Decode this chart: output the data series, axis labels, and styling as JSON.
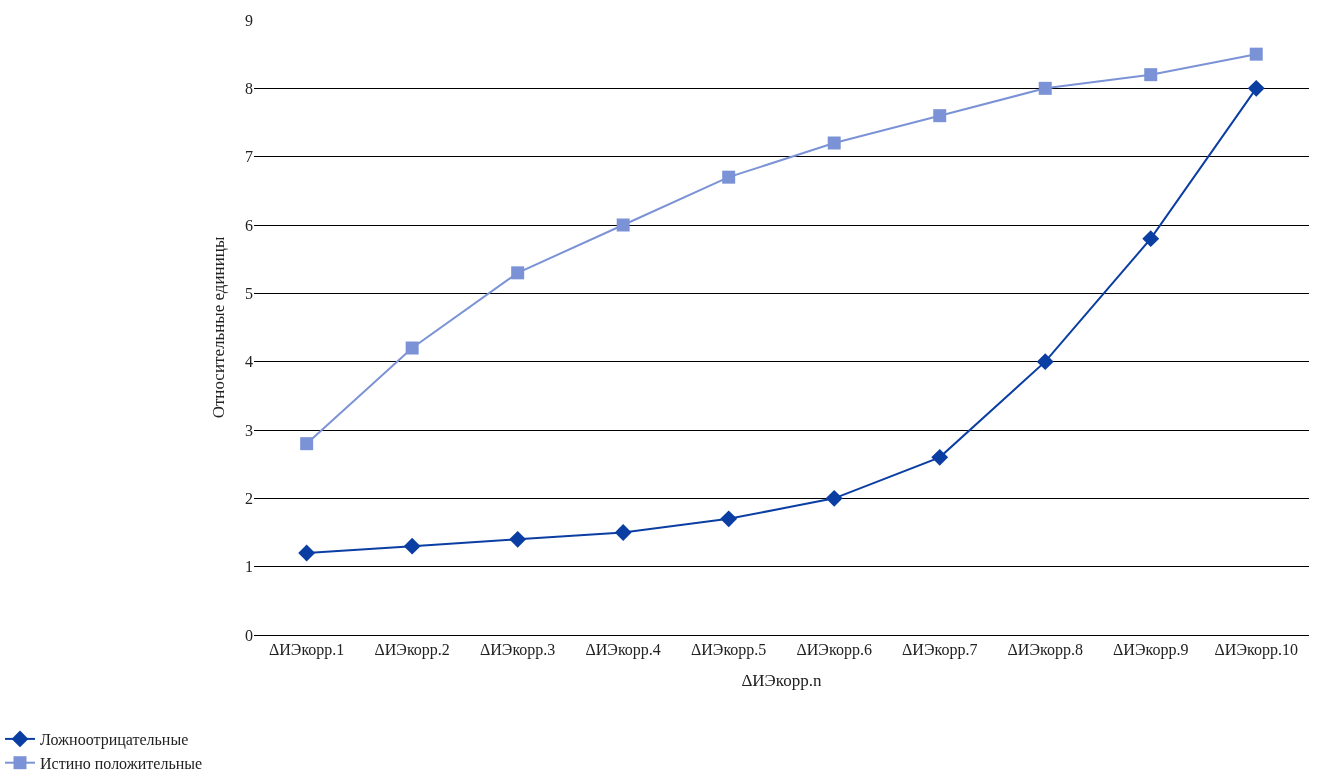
{
  "chart_data": {
    "type": "line",
    "xlabel": "ΔИЭкорр.n",
    "ylabel": "Относительные единицы",
    "categories": [
      "ΔИЭкорр.1",
      "ΔИЭкорр.2",
      "ΔИЭкорр.3",
      "ΔИЭкорр.4",
      "ΔИЭкорр.5",
      "ΔИЭкорр.6",
      "ΔИЭкорр.7",
      "ΔИЭкорр.8",
      "ΔИЭкорр.9",
      "ΔИЭкорр.10"
    ],
    "series": [
      {
        "name": "Ложноотрицательные",
        "color": "#0b3ea3",
        "marker": "diamond",
        "values": [
          1.2,
          1.3,
          1.4,
          1.5,
          1.7,
          2.0,
          2.6,
          4.0,
          5.8,
          8.0
        ]
      },
      {
        "name": "Истино положительные",
        "color": "#7b93d6",
        "marker": "square",
        "values": [
          2.8,
          4.2,
          5.3,
          6.0,
          6.7,
          7.2,
          7.6,
          8.0,
          8.2,
          8.5
        ]
      }
    ],
    "ylim": [
      0,
      9
    ],
    "yticks": [
      0,
      1,
      2,
      3,
      4,
      5,
      6,
      7,
      8,
      9
    ],
    "grid": "y",
    "legend": "bottom left",
    "line_style": "solid"
  }
}
